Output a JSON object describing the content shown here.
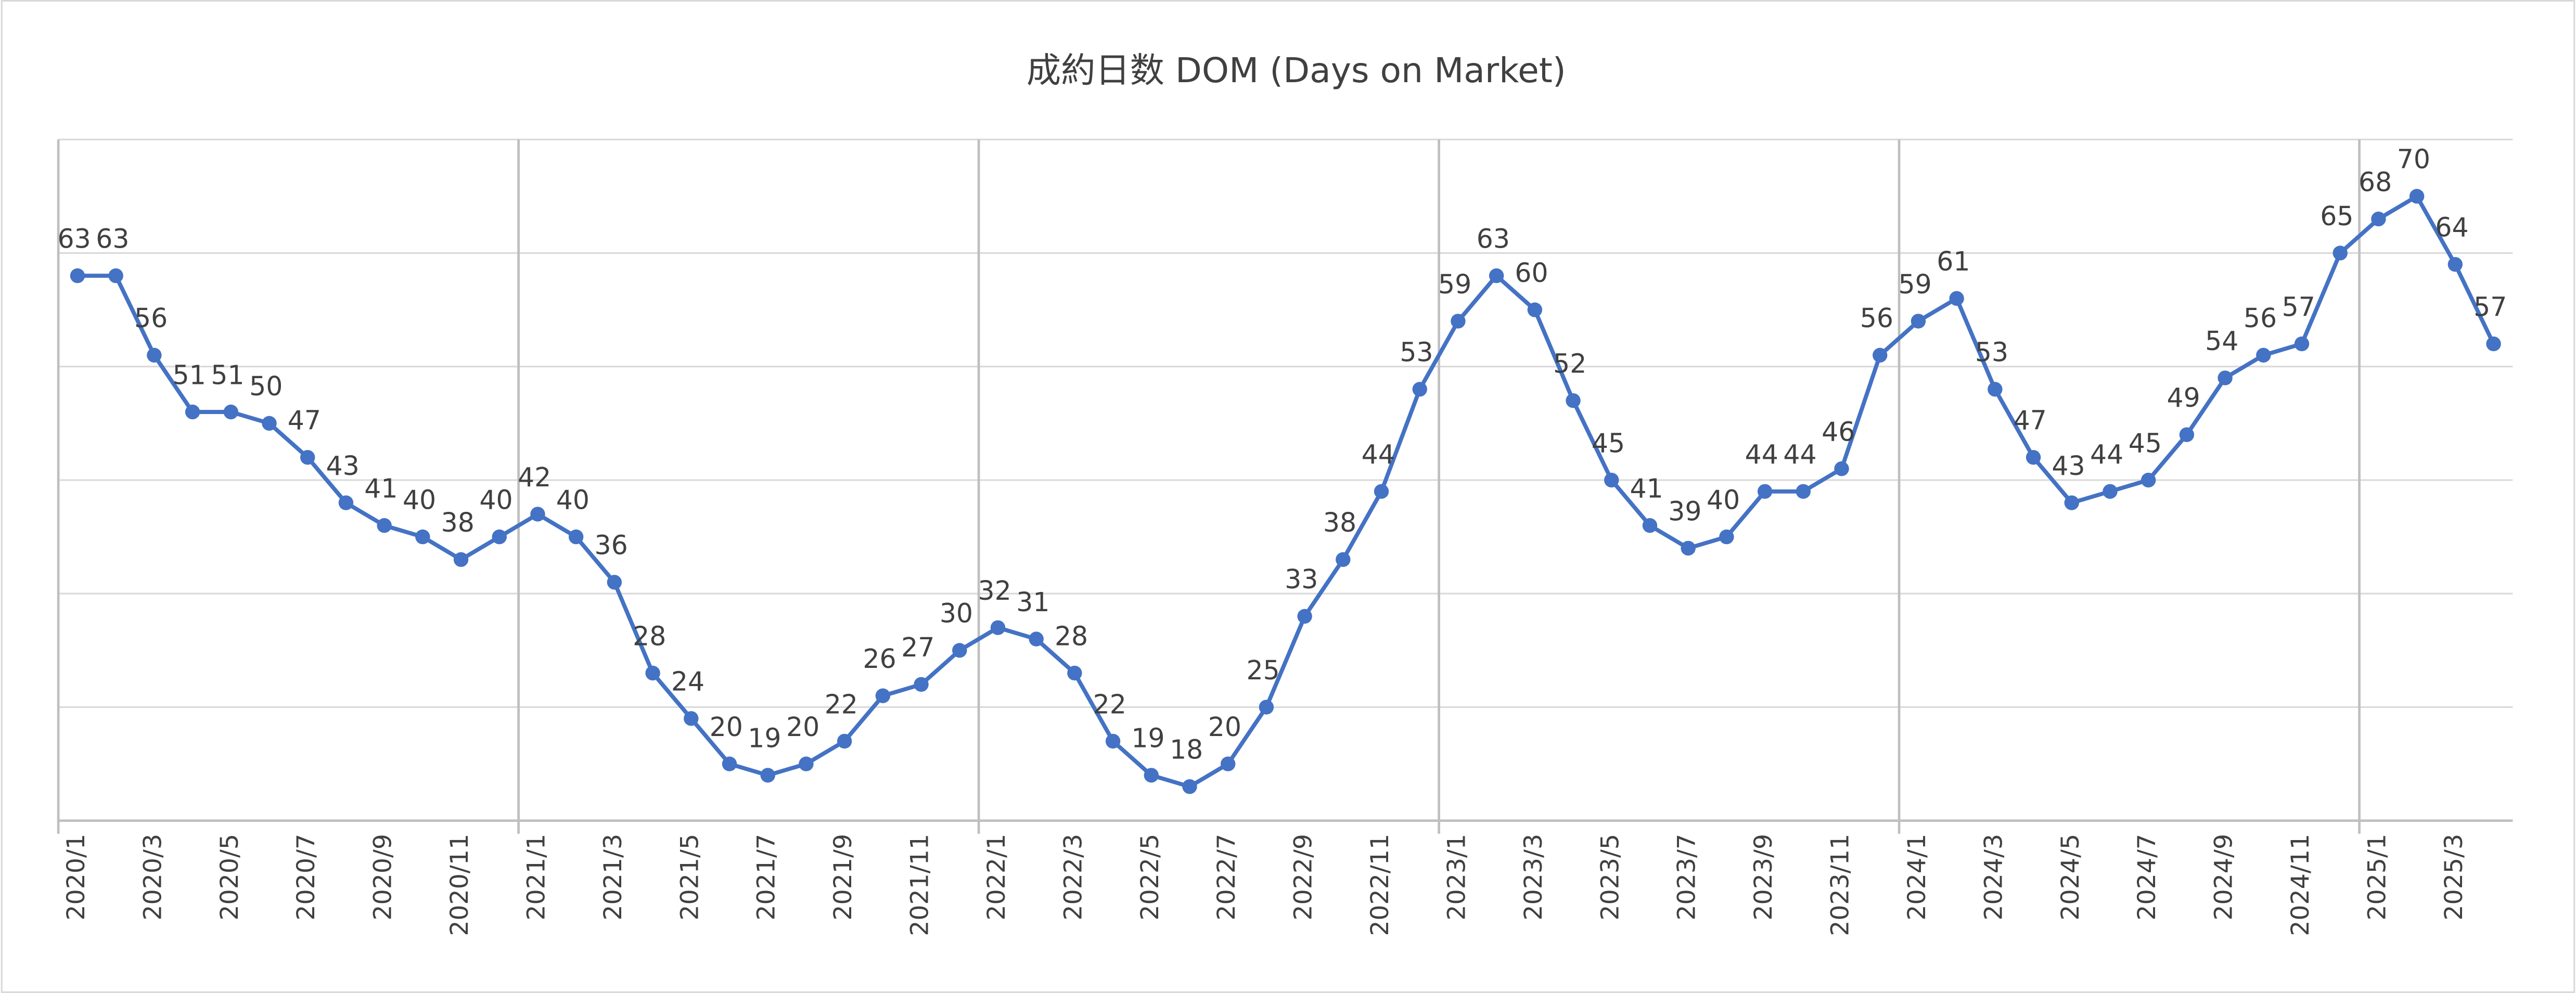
{
  "chart_data": {
    "type": "line",
    "title": "成約日数 DOM (Days on Market)",
    "categories": [
      "2020/1",
      null,
      "2020/3",
      null,
      "2020/5",
      null,
      "2020/7",
      null,
      "2020/9",
      null,
      "2020/11",
      null,
      "2021/1",
      null,
      "2021/3",
      null,
      "2021/5",
      null,
      "2021/7",
      null,
      "2021/9",
      null,
      "2021/11",
      null,
      "2022/1",
      null,
      "2022/3",
      null,
      "2022/5",
      null,
      "2022/7",
      null,
      "2022/9",
      null,
      "2022/11",
      null,
      "2023/1",
      null,
      "2023/3",
      null,
      "2023/5",
      null,
      "2023/7",
      null,
      "2023/9",
      null,
      "2023/11",
      null,
      "2024/1",
      null,
      "2024/3",
      null,
      "2024/5",
      null,
      "2024/7",
      null,
      "2024/9",
      null,
      "2024/11",
      null,
      "2025/1",
      null,
      "2025/3",
      null
    ],
    "series": [
      {
        "name": "DOM",
        "color": "#4472c4",
        "values": [
          63,
          63,
          56,
          51,
          51,
          50,
          47,
          43,
          41,
          40,
          38,
          40,
          42,
          40,
          36,
          28,
          24,
          20,
          19,
          20,
          22,
          26,
          27,
          30,
          32,
          31,
          28,
          22,
          19,
          18,
          20,
          25,
          33,
          38,
          44,
          53,
          59,
          63,
          60,
          52,
          45,
          41,
          39,
          40,
          44,
          44,
          46,
          56,
          59,
          61,
          53,
          47,
          43,
          44,
          45,
          49,
          54,
          56,
          57,
          65,
          68,
          70,
          64,
          57
        ]
      }
    ],
    "ylim": [
      15,
      75
    ],
    "yticks": [
      15,
      25,
      35,
      45,
      55,
      65,
      75
    ],
    "grid": true
  }
}
